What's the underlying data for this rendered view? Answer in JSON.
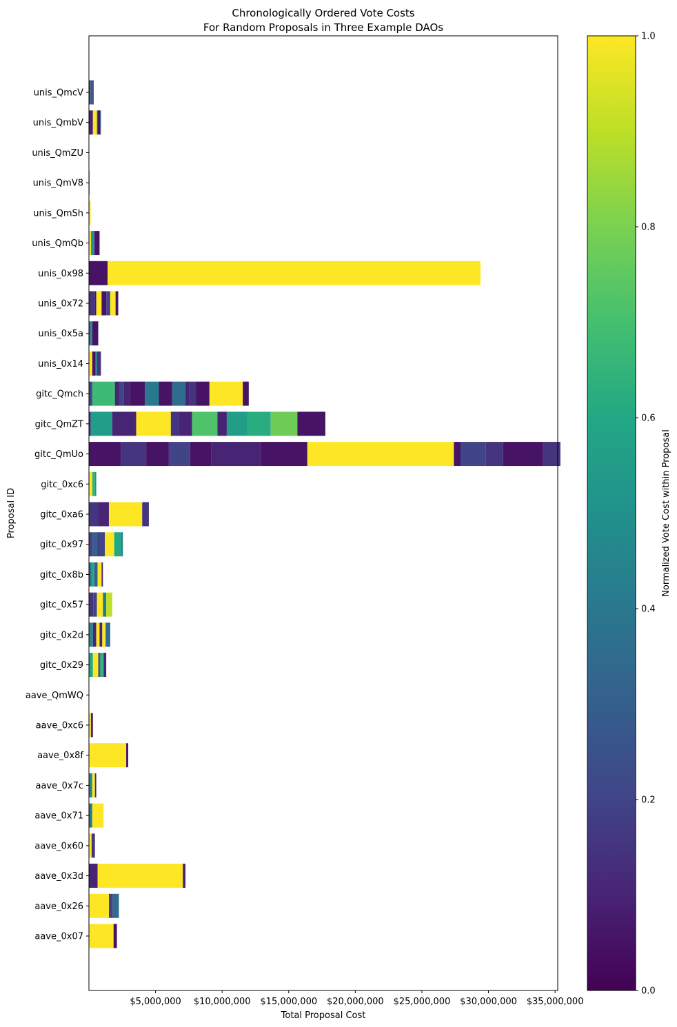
{
  "chart_data": {
    "type": "bar",
    "orientation": "horizontal-stacked",
    "title_line1": "Chronologically Ordered Vote Costs",
    "title_line2": "For Random Proposals in Three Example DAOs",
    "xlabel": "Total Proposal Cost",
    "ylabel": "Proposal ID",
    "xlim": [
      0,
      35200000
    ],
    "x_ticks": [
      {
        "value": 5000000,
        "label": "$5,000,000"
      },
      {
        "value": 10000000,
        "label": "$10,000,000"
      },
      {
        "value": 15000000,
        "label": "$15,000,000"
      },
      {
        "value": 20000000,
        "label": "$20,000,000"
      },
      {
        "value": 25000000,
        "label": "$25,000,000"
      },
      {
        "value": 30000000,
        "label": "$30,000,000"
      },
      {
        "value": 35000000,
        "label": "$35,000,000"
      }
    ],
    "colorbar": {
      "label": "Normalized Vote Cost within Proposal",
      "range": [
        0,
        1
      ],
      "ticks": [
        {
          "value": 0.0,
          "label": "0.0"
        },
        {
          "value": 0.2,
          "label": "0.2"
        },
        {
          "value": 0.4,
          "label": "0.4"
        },
        {
          "value": 0.6,
          "label": "0.6"
        },
        {
          "value": 0.8,
          "label": "0.8"
        },
        {
          "value": 1.0,
          "label": "1.0"
        }
      ]
    },
    "proposals": [
      {
        "id": "unis_QmcV",
        "segments": [
          [
            0.08,
            0.25
          ],
          [
            0.04,
            0.05
          ],
          [
            0.04,
            0.4
          ],
          [
            0.13,
            0.2
          ],
          [
            0.05,
            0.3
          ],
          [
            0.02,
            0.1
          ]
        ]
      },
      {
        "id": "unis_QmbV",
        "segments": [
          [
            0.3,
            0.1
          ],
          [
            0.3,
            1.0
          ],
          [
            0.05,
            0.35
          ],
          [
            0.2,
            0.05
          ],
          [
            0.05,
            0.4
          ]
        ]
      },
      {
        "id": "unis_QmZU",
        "segments": [
          [
            0.02,
            0.1
          ]
        ]
      },
      {
        "id": "unis_QmV8",
        "segments": [
          [
            0.05,
            0.7
          ]
        ]
      },
      {
        "id": "unis_QmSh",
        "segments": [
          [
            0.13,
            1.0
          ]
        ]
      },
      {
        "id": "unis_QmQb",
        "segments": [
          [
            0.15,
            1.0
          ],
          [
            0.05,
            0.45
          ],
          [
            0.15,
            0.5
          ],
          [
            0.1,
            0.2
          ],
          [
            0.35,
            0.05
          ]
        ]
      },
      {
        "id": "unis_0x98",
        "segments": [
          [
            1.4,
            0.05
          ],
          [
            28.0,
            1.0
          ]
        ]
      },
      {
        "id": "unis_0x72",
        "segments": [
          [
            0.45,
            0.15
          ],
          [
            0.1,
            0.05
          ],
          [
            0.4,
            1.0
          ],
          [
            0.35,
            0.05
          ],
          [
            0.3,
            0.2
          ],
          [
            0.4,
            1.0
          ],
          [
            0.2,
            0.05
          ]
        ]
      },
      {
        "id": "unis_0x5a",
        "segments": [
          [
            0.15,
            0.35
          ],
          [
            0.1,
            0.5
          ],
          [
            0.45,
            0.05
          ]
        ]
      },
      {
        "id": "unis_0x14",
        "segments": [
          [
            0.25,
            1.0
          ],
          [
            0.25,
            0.05
          ],
          [
            0.1,
            0.5
          ],
          [
            0.3,
            0.15
          ]
        ]
      },
      {
        "id": "gitc_Qmch",
        "segments": [
          [
            0.25,
            0.2
          ],
          [
            1.7,
            0.68
          ],
          [
            0.35,
            0.1
          ],
          [
            0.3,
            0.2
          ],
          [
            0.5,
            0.1
          ],
          [
            1.1,
            0.05
          ],
          [
            1.05,
            0.4
          ],
          [
            1.0,
            0.05
          ],
          [
            1.0,
            0.35
          ],
          [
            0.3,
            0.1
          ],
          [
            0.5,
            0.15
          ],
          [
            1.0,
            0.05
          ],
          [
            2.5,
            1.0
          ],
          [
            0.45,
            0.05
          ]
        ]
      },
      {
        "id": "gitc_QmZT",
        "segments": [
          [
            0.15,
            0.2
          ],
          [
            1.6,
            0.55
          ],
          [
            1.8,
            0.1
          ],
          [
            2.6,
            1.0
          ],
          [
            0.6,
            0.15
          ],
          [
            1.0,
            0.1
          ],
          [
            1.9,
            0.72
          ],
          [
            0.7,
            0.1
          ],
          [
            1.6,
            0.55
          ],
          [
            1.7,
            0.62
          ],
          [
            2.0,
            0.78
          ],
          [
            2.1,
            0.05
          ]
        ]
      },
      {
        "id": "gitc_QmUo",
        "segments": [
          [
            2.4,
            0.05
          ],
          [
            1.9,
            0.15
          ],
          [
            1.7,
            0.05
          ],
          [
            1.6,
            0.2
          ],
          [
            1.6,
            0.05
          ],
          [
            3.7,
            0.1
          ],
          [
            3.5,
            0.05
          ],
          [
            11.0,
            1.0
          ],
          [
            0.5,
            0.05
          ],
          [
            1.9,
            0.2
          ],
          [
            1.3,
            0.15
          ],
          [
            3.0,
            0.05
          ],
          [
            1.3,
            0.15
          ]
        ]
      },
      {
        "id": "gitc_0xc6",
        "segments": [
          [
            0.25,
            1.0
          ],
          [
            0.2,
            0.65
          ],
          [
            0.1,
            0.5
          ]
        ]
      },
      {
        "id": "gitc_0xa6",
        "segments": [
          [
            0.7,
            0.15
          ],
          [
            0.8,
            0.1
          ],
          [
            2.5,
            1.0
          ],
          [
            0.5,
            0.15
          ]
        ]
      },
      {
        "id": "gitc_0x97",
        "segments": [
          [
            0.3,
            0.2
          ],
          [
            0.3,
            0.3
          ],
          [
            0.6,
            0.2
          ],
          [
            0.7,
            1.0
          ],
          [
            0.5,
            0.6
          ],
          [
            0.15,
            0.45
          ]
        ]
      },
      {
        "id": "gitc_0x8b",
        "segments": [
          [
            0.2,
            0.35
          ],
          [
            0.2,
            0.6
          ],
          [
            0.25,
            0.3
          ],
          [
            0.3,
            1.0
          ],
          [
            0.1,
            0.1
          ]
        ]
      },
      {
        "id": "gitc_0x57",
        "segments": [
          [
            0.35,
            0.15
          ],
          [
            0.25,
            0.2
          ],
          [
            0.45,
            1.0
          ],
          [
            0.25,
            0.4
          ],
          [
            0.45,
            0.9
          ]
        ]
      },
      {
        "id": "gitc_0x2d",
        "segments": [
          [
            0.3,
            0.45
          ],
          [
            0.25,
            0.1
          ],
          [
            0.25,
            1.0
          ],
          [
            0.2,
            0.1
          ],
          [
            0.25,
            1.0
          ],
          [
            0.35,
            0.35
          ]
        ]
      },
      {
        "id": "gitc_0x29",
        "segments": [
          [
            0.3,
            0.6
          ],
          [
            0.4,
            1.0
          ],
          [
            0.15,
            0.25
          ],
          [
            0.25,
            0.65
          ],
          [
            0.2,
            0.1
          ]
        ]
      },
      {
        "id": "aave_QmWQ",
        "segments": [
          [
            0.02,
            0.1
          ]
        ]
      },
      {
        "id": "aave_0xc6",
        "segments": [
          [
            0.15,
            1.0
          ],
          [
            0.15,
            0.1
          ]
        ]
      },
      {
        "id": "aave_0x8f",
        "segments": [
          [
            2.8,
            1.0
          ],
          [
            0.15,
            0.05
          ]
        ]
      },
      {
        "id": "aave_0x7c",
        "segments": [
          [
            0.25,
            0.45
          ],
          [
            0.2,
            1.0
          ],
          [
            0.1,
            0.1
          ]
        ]
      },
      {
        "id": "aave_0x71",
        "segments": [
          [
            0.25,
            0.4
          ],
          [
            0.85,
            1.0
          ]
        ]
      },
      {
        "id": "aave_0x60",
        "segments": [
          [
            0.2,
            1.0
          ],
          [
            0.25,
            0.15
          ]
        ]
      },
      {
        "id": "aave_0x3d",
        "segments": [
          [
            0.65,
            0.1
          ],
          [
            6.4,
            1.0
          ],
          [
            0.2,
            0.1
          ]
        ]
      },
      {
        "id": "aave_0x26",
        "segments": [
          [
            1.5,
            1.0
          ],
          [
            0.3,
            0.2
          ],
          [
            0.45,
            0.35
          ]
        ]
      },
      {
        "id": "aave_0x07",
        "segments": [
          [
            1.85,
            1.0
          ],
          [
            0.25,
            0.05
          ]
        ]
      }
    ]
  }
}
